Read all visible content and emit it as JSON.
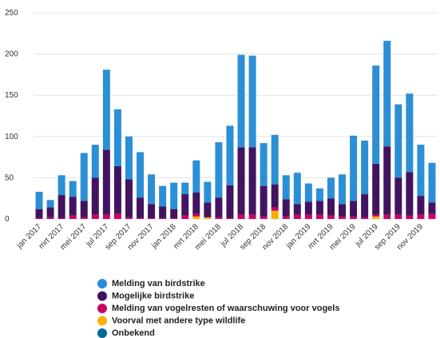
{
  "chart_data": {
    "type": "stacked_bar",
    "categories": [
      "jan 2017",
      null,
      "mrt 2017",
      null,
      "mei 2017",
      null,
      "jul 2017",
      null,
      "sep 2017",
      null,
      "nov 2017",
      null,
      "jan 2018",
      null,
      "mrt 2018",
      null,
      "mei 2018",
      null,
      "jul 2018",
      null,
      "sep 2018",
      null,
      "nov 2018",
      null,
      "jan 2019",
      null,
      "mrt 2019",
      null,
      "mei 2019",
      null,
      "jul 2019",
      null,
      "sep 2019",
      null,
      "nov 2019",
      null
    ],
    "series": [
      {
        "name": "Melding van birdstrike",
        "color": "#2b8fd6",
        "values": [
          21,
          9,
          24,
          19,
          58,
          40,
          97,
          69,
          52,
          55,
          36,
          25,
          32,
          14,
          39,
          25,
          67,
          72,
          112,
          111,
          52,
          60,
          29,
          38,
          22,
          15,
          25,
          36,
          79,
          65,
          119,
          128,
          89,
          95,
          62,
          48
        ]
      },
      {
        "name": "Mogelijke birdstrike",
        "color": "#42145f",
        "values": [
          11,
          12,
          28,
          23,
          20,
          45,
          79,
          58,
          46,
          25,
          17,
          14,
          11,
          26,
          26,
          18,
          24,
          40,
          82,
          82,
          37,
          28,
          21,
          13,
          16,
          17,
          21,
          15,
          19,
          28,
          62,
          83,
          45,
          53,
          23,
          14
        ]
      },
      {
        "name": "Melding van vogelresten of waarschuwing voor vogels",
        "color": "#cc0066",
        "values": [
          1,
          2,
          1,
          4,
          2,
          5,
          5,
          6,
          2,
          1,
          1,
          1,
          1,
          4,
          3,
          0,
          2,
          1,
          5,
          5,
          3,
          4,
          3,
          5,
          5,
          5,
          4,
          3,
          3,
          2,
          2,
          5,
          5,
          4,
          5,
          6
        ]
      },
      {
        "name": "Voorval met andere type wildlife",
        "color": "#f9b000",
        "values": [
          0,
          0,
          0,
          0,
          0,
          0,
          0,
          0,
          0,
          0,
          0,
          0,
          0,
          0,
          3,
          2,
          0,
          0,
          0,
          0,
          0,
          10,
          0,
          0,
          0,
          0,
          0,
          0,
          0,
          0,
          3,
          0,
          0,
          0,
          0,
          0
        ]
      },
      {
        "name": "Onbekend",
        "color": "#01689b",
        "values": [
          0,
          0,
          0,
          0,
          0,
          0,
          0,
          0,
          0,
          0,
          0,
          0,
          0,
          0,
          0,
          0,
          0,
          0,
          0,
          0,
          0,
          0,
          0,
          0,
          0,
          0,
          0,
          0,
          0,
          0,
          0,
          0,
          0,
          0,
          0,
          0
        ]
      }
    ],
    "ylim": [
      0,
      250
    ],
    "yticks": [
      0,
      50,
      100,
      150,
      200,
      250
    ],
    "grid": true
  }
}
